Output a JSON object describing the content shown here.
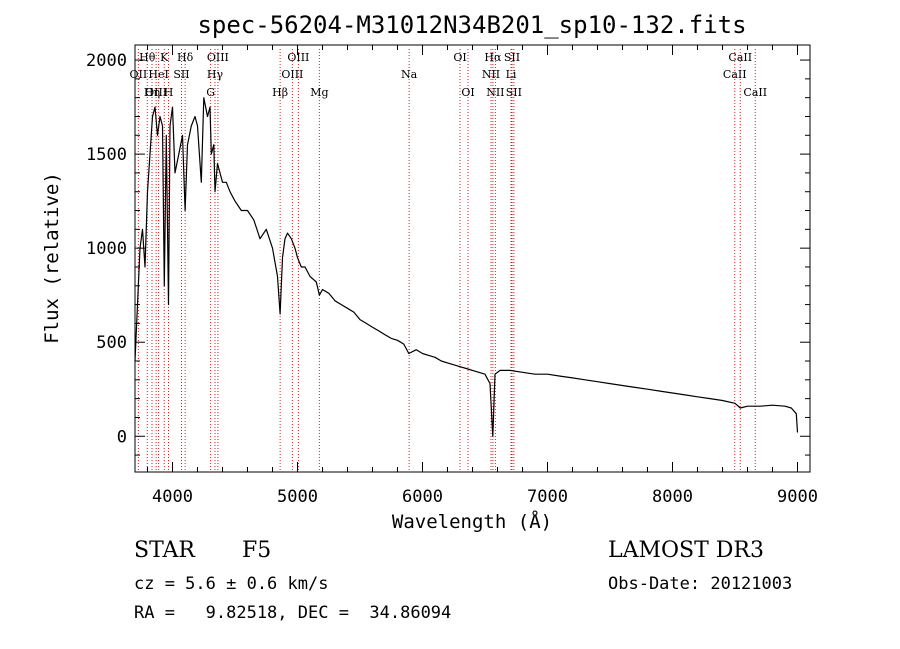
{
  "chart_data": {
    "type": "line",
    "title": "spec-56204-M31012N34B201_sp10-132.fits",
    "xlabel": "Wavelength (Å)",
    "ylabel": "Flux (relative)",
    "xlim": [
      3700,
      9100
    ],
    "ylim": [
      -190,
      2080
    ],
    "xticks": [
      4000,
      5000,
      6000,
      7000,
      8000,
      9000
    ],
    "yticks": [
      0,
      500,
      1000,
      1500,
      2000
    ],
    "grid": false,
    "series": [
      {
        "name": "spectrum",
        "x": [
          3700,
          3720,
          3740,
          3760,
          3780,
          3800,
          3820,
          3840,
          3860,
          3880,
          3900,
          3920,
          3934,
          3950,
          3968,
          3980,
          4000,
          4020,
          4050,
          4080,
          4101,
          4120,
          4150,
          4180,
          4200,
          4230,
          4250,
          4280,
          4300,
          4310,
          4330,
          4340,
          4360,
          4380,
          4400,
          4430,
          4460,
          4500,
          4550,
          4600,
          4650,
          4700,
          4750,
          4800,
          4840,
          4861,
          4880,
          4900,
          4920,
          4950,
          4980,
          5000,
          5030,
          5060,
          5100,
          5150,
          5175,
          5200,
          5250,
          5300,
          5350,
          5400,
          5450,
          5500,
          5550,
          5600,
          5650,
          5700,
          5750,
          5800,
          5850,
          5890,
          5950,
          6000,
          6050,
          6100,
          6150,
          6200,
          6250,
          6300,
          6350,
          6400,
          6450,
          6500,
          6540,
          6562,
          6580,
          6620,
          6700,
          6800,
          6900,
          7000,
          7100,
          7200,
          7300,
          7400,
          7500,
          7600,
          7700,
          7800,
          7900,
          8000,
          8100,
          8200,
          8300,
          8400,
          8500,
          8542,
          8600,
          8700,
          8800,
          8900,
          8950,
          8990,
          9000
        ],
        "y": [
          400,
          700,
          1000,
          1100,
          900,
          1300,
          1500,
          1700,
          1750,
          1600,
          1700,
          1650,
          800,
          1600,
          700,
          1650,
          1750,
          1400,
          1500,
          1600,
          1200,
          1550,
          1650,
          1700,
          1650,
          1350,
          1800,
          1700,
          1750,
          1500,
          1550,
          1300,
          1450,
          1400,
          1350,
          1350,
          1300,
          1250,
          1200,
          1200,
          1150,
          1050,
          1100,
          1000,
          850,
          650,
          950,
          1050,
          1080,
          1050,
          1000,
          950,
          900,
          900,
          850,
          820,
          750,
          780,
          760,
          720,
          700,
          680,
          660,
          620,
          600,
          580,
          560,
          540,
          520,
          510,
          490,
          440,
          460,
          440,
          430,
          420,
          400,
          390,
          380,
          370,
          360,
          350,
          340,
          330,
          280,
          0,
          330,
          350,
          350,
          340,
          330,
          330,
          320,
          310,
          300,
          290,
          280,
          270,
          260,
          250,
          240,
          230,
          220,
          210,
          200,
          190,
          175,
          150,
          160,
          160,
          165,
          160,
          150,
          120,
          20
        ]
      }
    ],
    "annotations": [
      {
        "label": "Hθ",
        "x": 3798,
        "row": 1
      },
      {
        "label": "OII",
        "x": 3727,
        "row": 2
      },
      {
        "label": "OIII",
        "x": 3869,
        "row": 3
      },
      {
        "label": "Hη",
        "x": 3836,
        "row": 3
      },
      {
        "label": "HeI",
        "x": 3889,
        "row": 2
      },
      {
        "label": "K",
        "x": 3934,
        "row": 1
      },
      {
        "label": "H",
        "x": 3968,
        "row": 3
      },
      {
        "label": "Hδ",
        "x": 4101,
        "row": 1
      },
      {
        "label": "SII",
        "x": 4072,
        "row": 2
      },
      {
        "label": "OIII",
        "x": 4363,
        "row": 1
      },
      {
        "label": "Hγ",
        "x": 4340,
        "row": 2
      },
      {
        "label": "G",
        "x": 4305,
        "row": 3
      },
      {
        "label": "OIII",
        "x": 5007,
        "row": 1
      },
      {
        "label": "OIII",
        "x": 4959,
        "row": 2
      },
      {
        "label": "Hβ",
        "x": 4861,
        "row": 3
      },
      {
        "label": "Mg",
        "x": 5175,
        "row": 3
      },
      {
        "label": "Na",
        "x": 5893,
        "row": 2
      },
      {
        "label": "OI",
        "x": 6300,
        "row": 1
      },
      {
        "label": "OI",
        "x": 6364,
        "row": 3
      },
      {
        "label": "Hα",
        "x": 6563,
        "row": 1
      },
      {
        "label": "NII",
        "x": 6548,
        "row": 2
      },
      {
        "label": "NII",
        "x": 6583,
        "row": 3
      },
      {
        "label": "SII",
        "x": 6716,
        "row": 1
      },
      {
        "label": "Li",
        "x": 6708,
        "row": 2
      },
      {
        "label": "SII",
        "x": 6731,
        "row": 3
      },
      {
        "label": "CaII",
        "x": 8542,
        "row": 1
      },
      {
        "label": "CaII",
        "x": 8498,
        "row": 2
      },
      {
        "label": "CaII",
        "x": 8662,
        "row": 3
      }
    ]
  },
  "info": {
    "object_class": "STAR",
    "subclass": "F5",
    "redshift": "cz = 5.6 ± 0.6 km/s",
    "coordinates": "RA =   9.82518, DEC =  34.86094",
    "survey": "LAMOST DR3",
    "obs_date": "Obs-Date: 20121003"
  }
}
